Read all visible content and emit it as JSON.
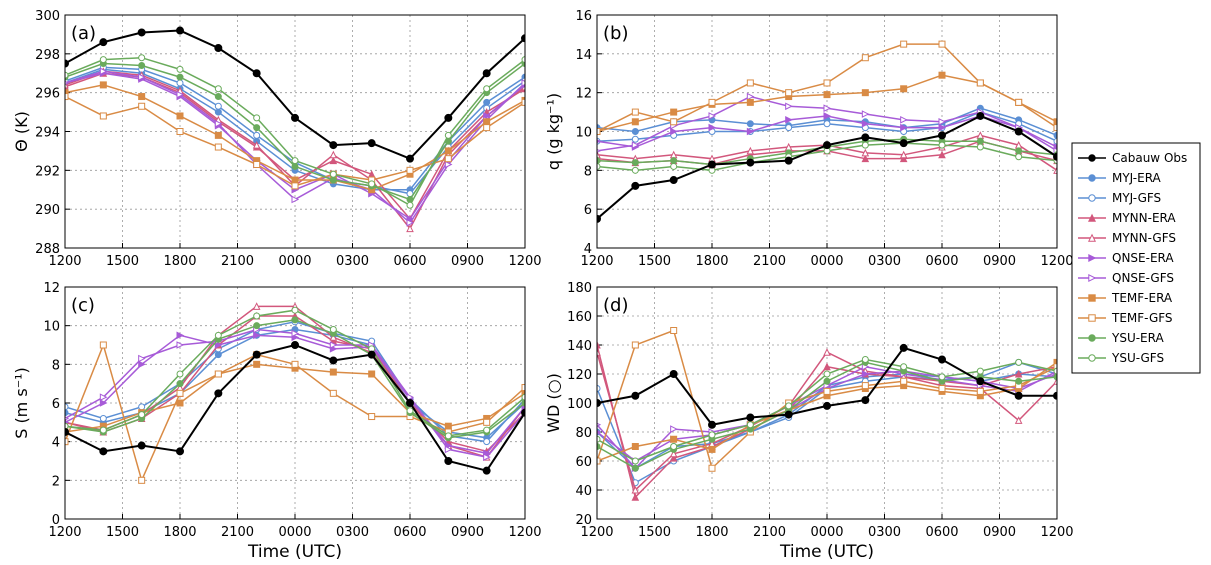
{
  "legend": [
    {
      "name": "Cabauw Obs",
      "color": "#000000",
      "marker": "circle",
      "filled": true
    },
    {
      "name": "MYJ-ERA",
      "color": "#5b8fd4",
      "marker": "circle",
      "filled": true
    },
    {
      "name": "MYJ-GFS",
      "color": "#5b8fd4",
      "marker": "circle",
      "filled": false
    },
    {
      "name": "MYNN-ERA",
      "color": "#d2577c",
      "marker": "triangle",
      "filled": true
    },
    {
      "name": "MYNN-GFS",
      "color": "#d2577c",
      "marker": "triangle",
      "filled": false
    },
    {
      "name": "QNSE-ERA",
      "color": "#a75bd8",
      "marker": "right-triangle",
      "filled": true
    },
    {
      "name": "QNSE-GFS",
      "color": "#a75bd8",
      "marker": "right-triangle",
      "filled": false
    },
    {
      "name": "TEMF-ERA",
      "color": "#d98b45",
      "marker": "square",
      "filled": true
    },
    {
      "name": "TEMF-GFS",
      "color": "#d98b45",
      "marker": "square",
      "filled": false
    },
    {
      "name": "YSU-ERA",
      "color": "#6aab5c",
      "marker": "circle",
      "filled": true
    },
    {
      "name": "YSU-GFS",
      "color": "#6aab5c",
      "marker": "circle",
      "filled": false
    }
  ],
  "chart_data": [
    {
      "type": "line",
      "label": "(a)",
      "ylabel": "Θ (K)",
      "xlim": [
        0,
        24
      ],
      "ylim": [
        288,
        300
      ],
      "xticks": [
        {
          "value": 0,
          "label": "1200"
        },
        {
          "value": 3,
          "label": "1500"
        },
        {
          "value": 6,
          "label": "1800"
        },
        {
          "value": 9,
          "label": "2100"
        },
        {
          "value": 12,
          "label": "0000"
        },
        {
          "value": 15,
          "label": "0300"
        },
        {
          "value": 18,
          "label": "0600"
        },
        {
          "value": 21,
          "label": "0900"
        },
        {
          "value": 24,
          "label": "1200"
        }
      ],
      "yticks": [
        288,
        290,
        292,
        294,
        296,
        298,
        300
      ],
      "grid": true,
      "x": [
        0,
        2,
        4,
        6,
        8,
        10,
        12,
        14,
        16,
        18,
        20,
        22,
        24
      ],
      "series": [
        {
          "values": [
            297.5,
            298.6,
            299.1,
            299.2,
            298.3,
            297.0,
            294.7,
            293.3,
            293.4,
            292.6,
            294.7,
            297.0,
            298.8
          ]
        },
        {
          "values": [
            296.5,
            297.2,
            297.0,
            296.2,
            295.0,
            293.5,
            292.0,
            291.3,
            291.0,
            291.0,
            293.5,
            295.5,
            296.8
          ]
        },
        {
          "values": [
            296.6,
            297.3,
            297.2,
            296.5,
            295.3,
            293.8,
            292.4,
            291.5,
            291.2,
            290.8,
            293.2,
            295.2,
            296.6
          ]
        },
        {
          "values": [
            296.3,
            297.0,
            296.8,
            296.0,
            294.5,
            293.2,
            291.5,
            292.5,
            291.8,
            289.5,
            293.0,
            295.0,
            296.2
          ]
        },
        {
          "values": [
            296.4,
            297.1,
            296.9,
            296.1,
            294.6,
            293.3,
            291.2,
            292.8,
            291.5,
            289.0,
            292.8,
            294.8,
            296.3
          ]
        },
        {
          "values": [
            296.5,
            297.0,
            296.7,
            295.8,
            294.3,
            292.5,
            291.0,
            291.8,
            290.8,
            289.5,
            292.5,
            294.8,
            296.4
          ]
        },
        {
          "values": [
            296.5,
            297.1,
            296.8,
            295.9,
            294.4,
            292.3,
            290.5,
            291.6,
            291.0,
            289.3,
            292.3,
            294.6,
            296.5
          ]
        },
        {
          "values": [
            296.0,
            296.4,
            295.8,
            294.8,
            293.8,
            292.5,
            291.5,
            291.5,
            291.0,
            291.8,
            293.0,
            294.5,
            295.6
          ]
        },
        {
          "values": [
            295.8,
            294.8,
            295.3,
            294.0,
            293.2,
            292.3,
            291.2,
            291.8,
            291.5,
            292.0,
            292.6,
            294.2,
            295.5
          ]
        },
        {
          "values": [
            296.8,
            297.5,
            297.4,
            296.8,
            295.8,
            294.2,
            292.2,
            291.5,
            291.2,
            290.5,
            293.5,
            296.0,
            297.5
          ]
        },
        {
          "values": [
            296.9,
            297.7,
            297.8,
            297.2,
            296.2,
            294.7,
            292.5,
            291.8,
            291.3,
            290.2,
            293.8,
            296.2,
            297.7
          ]
        }
      ]
    },
    {
      "type": "line",
      "label": "(b)",
      "ylabel": "q (g kg⁻¹)",
      "xlim": [
        0,
        24
      ],
      "ylim": [
        4,
        16
      ],
      "xticks": [
        {
          "value": 0,
          "label": "1200"
        },
        {
          "value": 3,
          "label": "1500"
        },
        {
          "value": 6,
          "label": "1800"
        },
        {
          "value": 9,
          "label": "2100"
        },
        {
          "value": 12,
          "label": "0000"
        },
        {
          "value": 15,
          "label": "0300"
        },
        {
          "value": 18,
          "label": "0600"
        },
        {
          "value": 21,
          "label": "0900"
        },
        {
          "value": 24,
          "label": "1200"
        }
      ],
      "yticks": [
        4,
        6,
        8,
        10,
        12,
        14,
        16
      ],
      "grid": true,
      "x": [
        0,
        2,
        4,
        6,
        8,
        10,
        12,
        14,
        16,
        18,
        20,
        22,
        24
      ],
      "series": [
        {
          "values": [
            5.5,
            7.2,
            7.5,
            8.3,
            8.4,
            8.5,
            9.3,
            9.7,
            9.4,
            9.8,
            10.8,
            10.0,
            8.7
          ]
        },
        {
          "values": [
            10.2,
            10.0,
            10.5,
            10.6,
            10.4,
            10.3,
            10.6,
            10.5,
            10.2,
            10.4,
            11.2,
            10.6,
            9.8
          ]
        },
        {
          "values": [
            9.5,
            9.6,
            9.8,
            10.0,
            10.0,
            10.2,
            10.4,
            10.2,
            10.0,
            10.2,
            11.0,
            10.4,
            9.5
          ]
        },
        {
          "values": [
            8.6,
            8.4,
            8.5,
            8.3,
            8.8,
            9.0,
            9.0,
            8.6,
            8.6,
            8.8,
            9.5,
            9.0,
            8.5
          ]
        },
        {
          "values": [
            8.8,
            8.6,
            8.8,
            8.6,
            9.0,
            9.2,
            9.3,
            8.9,
            8.8,
            9.2,
            9.8,
            9.3,
            8.0
          ]
        },
        {
          "values": [
            9.5,
            9.2,
            10.0,
            10.2,
            10.0,
            10.6,
            10.8,
            10.4,
            10.2,
            10.2,
            10.8,
            10.2,
            9.2
          ]
        },
        {
          "values": [
            9.0,
            9.3,
            10.3,
            10.8,
            11.8,
            11.3,
            11.2,
            10.9,
            10.6,
            10.5,
            11.0,
            10.2,
            9.0
          ]
        },
        {
          "values": [
            10.0,
            10.5,
            11.0,
            11.4,
            11.5,
            11.8,
            11.9,
            12.0,
            12.2,
            12.9,
            12.5,
            11.5,
            10.5
          ]
        },
        {
          "values": [
            10.0,
            11.0,
            10.5,
            11.5,
            12.5,
            12.0,
            12.5,
            13.8,
            14.5,
            14.5,
            12.5,
            11.5,
            10.2
          ]
        },
        {
          "values": [
            8.5,
            8.4,
            8.5,
            8.3,
            8.6,
            8.9,
            9.2,
            9.5,
            9.6,
            9.5,
            9.5,
            9.0,
            8.8
          ]
        },
        {
          "values": [
            8.2,
            8.0,
            8.2,
            8.0,
            8.4,
            8.7,
            9.0,
            9.3,
            9.4,
            9.3,
            9.2,
            8.7,
            8.5
          ]
        }
      ]
    },
    {
      "type": "line",
      "label": "(c)",
      "ylabel": "S (m s⁻¹)",
      "xlabel": "Time (UTC)",
      "xlim": [
        0,
        24
      ],
      "ylim": [
        0,
        12
      ],
      "xticks": [
        {
          "value": 0,
          "label": "1200"
        },
        {
          "value": 3,
          "label": "1500"
        },
        {
          "value": 6,
          "label": "1800"
        },
        {
          "value": 9,
          "label": "2100"
        },
        {
          "value": 12,
          "label": "0000"
        },
        {
          "value": 15,
          "label": "0300"
        },
        {
          "value": 18,
          "label": "0600"
        },
        {
          "value": 21,
          "label": "0900"
        },
        {
          "value": 24,
          "label": "1200"
        }
      ],
      "yticks": [
        0,
        2,
        4,
        6,
        8,
        10,
        12
      ],
      "grid": true,
      "x": [
        0,
        2,
        4,
        6,
        8,
        10,
        12,
        14,
        16,
        18,
        20,
        22,
        24
      ],
      "series": [
        {
          "values": [
            4.5,
            3.5,
            3.8,
            3.5,
            6.5,
            8.5,
            9.0,
            8.2,
            8.5,
            6.0,
            3.0,
            2.5,
            5.5
          ]
        },
        {
          "values": [
            5.5,
            5.0,
            5.5,
            6.5,
            8.5,
            9.5,
            9.8,
            9.5,
            9.0,
            6.0,
            4.5,
            4.2,
            6.0
          ]
        },
        {
          "values": [
            5.8,
            5.2,
            5.8,
            7.0,
            8.8,
            9.8,
            10.2,
            9.6,
            9.2,
            6.2,
            4.3,
            4.0,
            6.2
          ]
        },
        {
          "values": [
            5.0,
            4.5,
            5.2,
            6.5,
            9.0,
            10.5,
            10.5,
            9.2,
            8.8,
            6.0,
            4.0,
            3.5,
            5.5
          ]
        },
        {
          "values": [
            5.0,
            4.6,
            5.4,
            6.8,
            9.5,
            11.0,
            11.0,
            9.4,
            8.6,
            6.0,
            3.8,
            3.2,
            5.8
          ]
        },
        {
          "values": [
            5.0,
            6.0,
            8.0,
            9.5,
            9.0,
            9.5,
            9.4,
            8.8,
            8.9,
            6.2,
            3.8,
            3.4,
            5.8
          ]
        },
        {
          "values": [
            5.2,
            6.3,
            8.3,
            9.0,
            9.2,
            9.8,
            9.6,
            9.0,
            9.0,
            6.3,
            3.6,
            3.2,
            5.5
          ]
        },
        {
          "values": [
            4.5,
            4.8,
            5.5,
            6.0,
            7.5,
            8.0,
            7.8,
            7.6,
            7.5,
            5.5,
            4.8,
            5.2,
            6.5
          ]
        },
        {
          "values": [
            4.0,
            9.0,
            2.0,
            6.5,
            7.5,
            8.5,
            8.0,
            6.5,
            5.3,
            5.3,
            4.5,
            5.0,
            6.8
          ]
        },
        {
          "values": [
            4.8,
            4.5,
            5.2,
            7.0,
            9.3,
            10.0,
            10.3,
            9.6,
            8.5,
            5.5,
            4.2,
            4.5,
            6.0
          ]
        },
        {
          "values": [
            4.8,
            4.6,
            5.4,
            7.5,
            9.5,
            10.5,
            10.8,
            9.8,
            8.8,
            5.6,
            4.3,
            4.6,
            6.3
          ]
        }
      ]
    },
    {
      "type": "line",
      "label": "(d)",
      "ylabel": "WD (○)",
      "xlabel": "Time (UTC)",
      "xlim": [
        0,
        24
      ],
      "ylim": [
        20,
        180
      ],
      "xticks": [
        {
          "value": 0,
          "label": "1200"
        },
        {
          "value": 3,
          "label": "1500"
        },
        {
          "value": 6,
          "label": "1800"
        },
        {
          "value": 9,
          "label": "2100"
        },
        {
          "value": 12,
          "label": "0000"
        },
        {
          "value": 15,
          "label": "0300"
        },
        {
          "value": 18,
          "label": "0600"
        },
        {
          "value": 21,
          "label": "0900"
        },
        {
          "value": 24,
          "label": "1200"
        }
      ],
      "yticks": [
        20,
        40,
        60,
        80,
        100,
        120,
        140,
        160,
        180
      ],
      "grid": true,
      "x": [
        0,
        2,
        4,
        6,
        8,
        10,
        12,
        14,
        16,
        18,
        20,
        22,
        24
      ],
      "series": [
        {
          "values": [
            100,
            105,
            120,
            85,
            90,
            92,
            98,
            102,
            138,
            130,
            115,
            105,
            105
          ]
        },
        {
          "values": [
            80,
            55,
            70,
            72,
            80,
            92,
            112,
            118,
            120,
            118,
            115,
            120,
            118
          ]
        },
        {
          "values": [
            110,
            45,
            60,
            70,
            80,
            90,
            110,
            115,
            118,
            116,
            118,
            128,
            120
          ]
        },
        {
          "values": [
            140,
            35,
            62,
            70,
            82,
            95,
            125,
            120,
            118,
            115,
            112,
            120,
            125
          ]
        },
        {
          "values": [
            135,
            40,
            65,
            72,
            84,
            98,
            135,
            122,
            118,
            112,
            110,
            88,
            115
          ]
        },
        {
          "values": [
            80,
            60,
            75,
            78,
            85,
            95,
            110,
            120,
            122,
            118,
            115,
            110,
            120
          ]
        },
        {
          "values": [
            85,
            55,
            82,
            80,
            85,
            98,
            112,
            125,
            120,
            116,
            112,
            108,
            122
          ]
        },
        {
          "values": [
            60,
            70,
            75,
            68,
            85,
            95,
            105,
            110,
            112,
            108,
            105,
            110,
            128
          ]
        },
        {
          "values": [
            60,
            140,
            150,
            55,
            80,
            100,
            108,
            112,
            115,
            110,
            108,
            112,
            125
          ]
        },
        {
          "values": [
            70,
            55,
            68,
            75,
            82,
            95,
            115,
            128,
            122,
            115,
            118,
            115,
            118
          ]
        },
        {
          "values": [
            75,
            60,
            70,
            78,
            85,
            98,
            120,
            130,
            125,
            118,
            122,
            128,
            122
          ]
        }
      ]
    }
  ]
}
